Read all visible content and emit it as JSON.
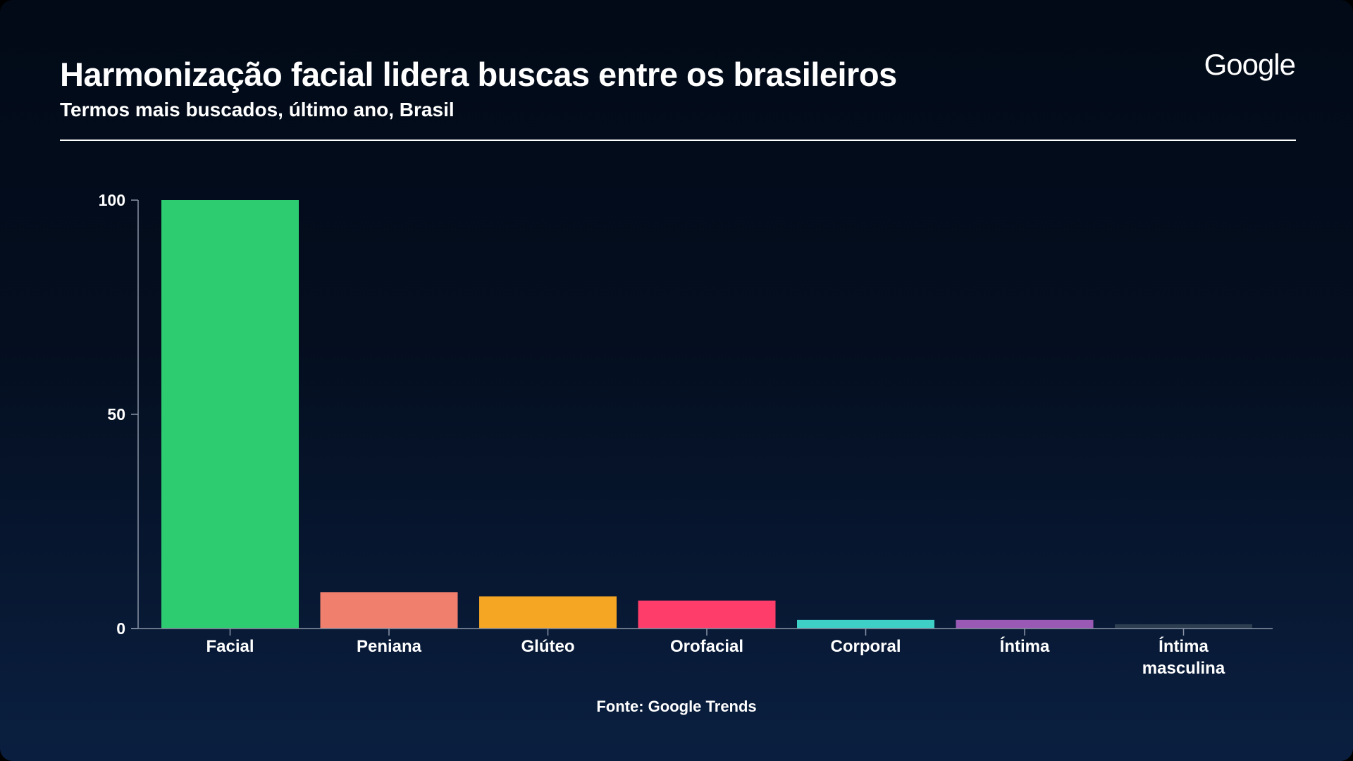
{
  "header": {
    "title": "Harmonização facial lidera buscas entre os brasileiros",
    "subtitle": "Termos mais buscados, último ano, Brasil",
    "logo_text": "Google"
  },
  "footer": {
    "source": "Fonte: Google Trends"
  },
  "chart_data": {
    "type": "bar",
    "title": "Harmonização facial lidera buscas entre os brasileiros",
    "subtitle": "Termos mais buscados, último ano, Brasil",
    "xlabel": "",
    "ylabel": "",
    "ylim": [
      0,
      100
    ],
    "yticks": [
      0,
      50,
      100
    ],
    "grid": false,
    "legend": "none",
    "categories": [
      "Facial",
      "Peniana",
      "Glúteo",
      "Orofacial",
      "Corporal",
      "Íntima",
      "Íntima masculina"
    ],
    "category_label_lines": [
      [
        "Facial"
      ],
      [
        "Peniana"
      ],
      [
        "Glúteo"
      ],
      [
        "Orofacial"
      ],
      [
        "Corporal"
      ],
      [
        "Íntima"
      ],
      [
        "Íntima",
        "masculina"
      ]
    ],
    "values": [
      100,
      8.5,
      7.5,
      6.5,
      2,
      2,
      1
    ],
    "colors": [
      "#2ecc71",
      "#f07f6e",
      "#f5a623",
      "#ff3d6b",
      "#3ecfc7",
      "#9b59b6",
      "#2c3e50"
    ]
  }
}
